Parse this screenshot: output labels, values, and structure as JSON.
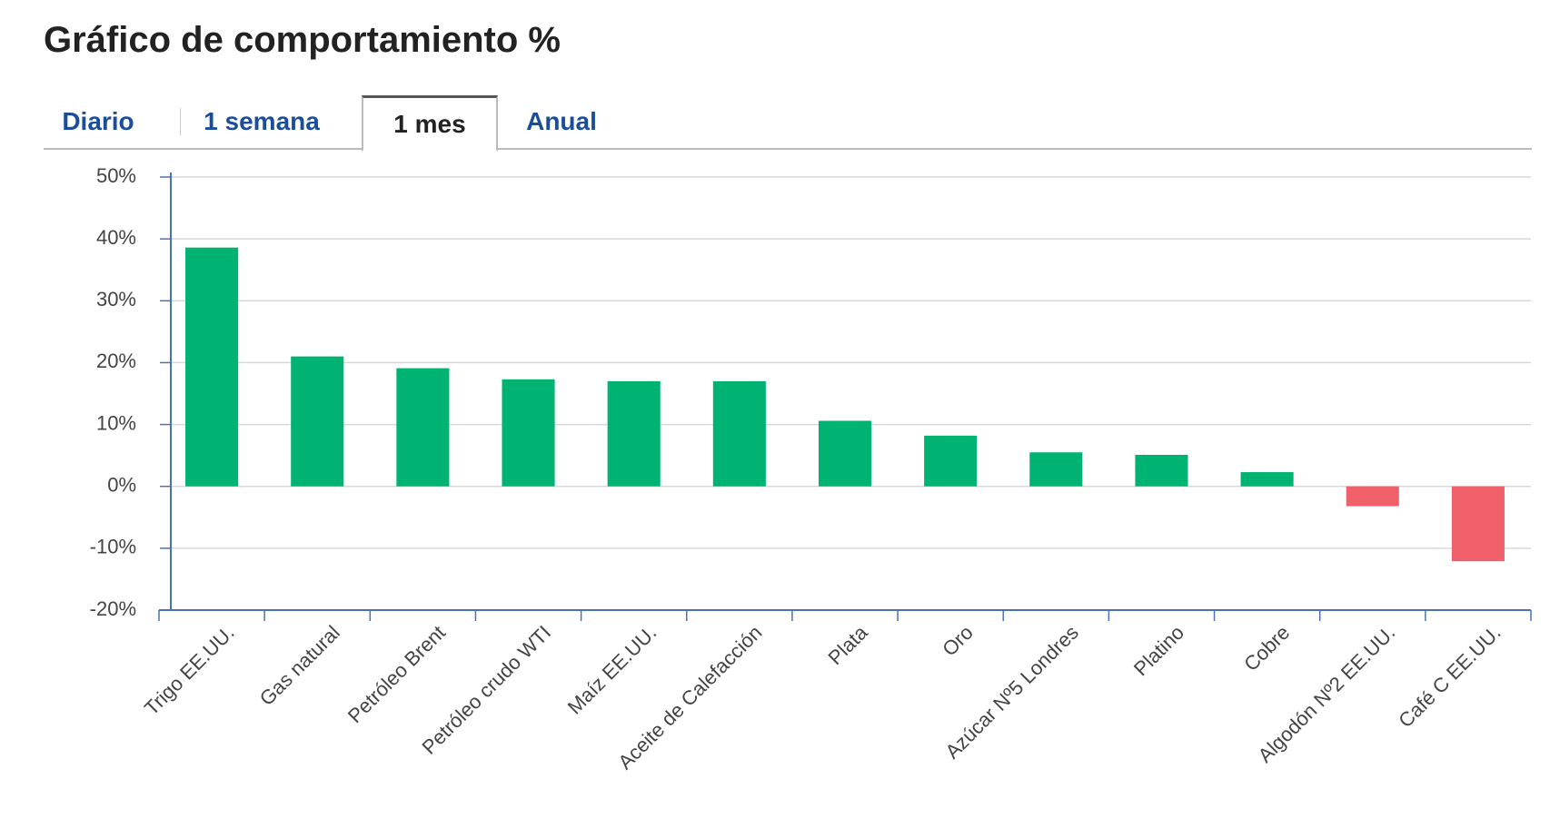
{
  "title": "Gráfico de comportamiento %",
  "tabs": {
    "items": [
      "Diario",
      "1 semana",
      "1 mes",
      "Anual"
    ],
    "active": 2
  },
  "chart_data": {
    "type": "bar",
    "categories": [
      "Trigo EE.UU.",
      "Gas natural",
      "Petróleo Brent",
      "Petróleo crudo WTI",
      "Maíz EE.UU.",
      "Aceite de Calefacción",
      "Plata",
      "Oro",
      "Azúcar Nº5 Londres",
      "Platino",
      "Cobre",
      "Algodón Nº2 EE.UU.",
      "Café C EE.UU."
    ],
    "values": [
      38.6,
      21.0,
      19.1,
      17.3,
      17.0,
      17.0,
      10.6,
      8.2,
      5.5,
      5.1,
      2.3,
      -3.2,
      -12.1
    ],
    "positive_color": "#00b373",
    "negative_color": "#f0606a",
    "ylim": [
      -20,
      50
    ],
    "yticks": [
      {
        "value": -20,
        "label": "-20%"
      },
      {
        "value": -10,
        "label": "-10%"
      },
      {
        "value": 0,
        "label": "0%"
      },
      {
        "value": 10,
        "label": "10%"
      },
      {
        "value": 20,
        "label": "20%"
      },
      {
        "value": 30,
        "label": "30%"
      },
      {
        "value": 40,
        "label": "40%"
      },
      {
        "value": 50,
        "label": "50%"
      }
    ],
    "grid": true
  }
}
